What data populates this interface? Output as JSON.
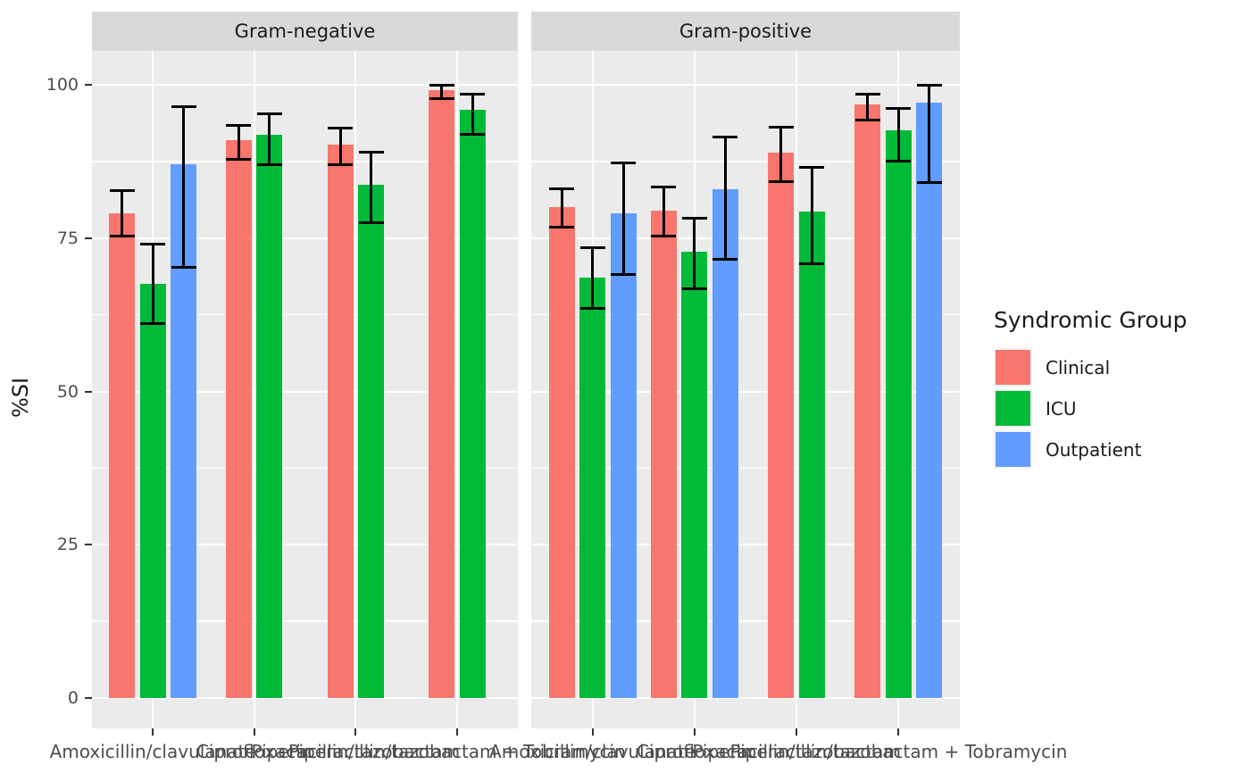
{
  "chart_data": {
    "type": "bar",
    "title": "",
    "xlabel": "",
    "ylabel": "%SI",
    "ylim": [
      0,
      100
    ],
    "y_ticks": [
      0,
      25,
      50,
      75,
      100
    ],
    "grid": true,
    "error_bars": true,
    "legend_position": "right",
    "categories": [
      "Amoxicillin/clavulanate",
      "Ciprofloxacin",
      "Piperacillin/tazobactam",
      "Piperacillin/tazobactam + Tobramycin"
    ],
    "facets": [
      {
        "name": "Gram-negative",
        "series": [
          {
            "name": "Clinical",
            "color": "#F8766D",
            "values": [
              79.1,
              91.0,
              90.2,
              99.1
            ],
            "ci_low": [
              75.4,
              87.9,
              87.0,
              97.8
            ],
            "ci_high": [
              82.8,
              93.4,
              93.0,
              100
            ]
          },
          {
            "name": "ICU",
            "color": "#00BA38",
            "values": [
              67.5,
              91.9,
              83.7,
              95.9
            ],
            "ci_low": [
              61.0,
              87.0,
              77.5,
              91.9
            ],
            "ci_high": [
              74.0,
              95.3,
              89.0,
              98.4
            ]
          },
          {
            "name": "Outpatient",
            "color": "#619CFF",
            "values": [
              87.1,
              null,
              null,
              null
            ],
            "ci_low": [
              70.3,
              null,
              null,
              null
            ],
            "ci_high": [
              96.5,
              null,
              null,
              null
            ]
          }
        ]
      },
      {
        "name": "Gram-positive",
        "series": [
          {
            "name": "Clinical",
            "color": "#F8766D",
            "values": [
              80.0,
              79.5,
              89.0,
              96.8
            ],
            "ci_low": [
              76.8,
              75.4,
              84.2,
              94.3
            ],
            "ci_high": [
              83.0,
              83.4,
              93.1,
              98.5
            ]
          },
          {
            "name": "ICU",
            "color": "#00BA38",
            "values": [
              68.6,
              72.8,
              79.4,
              92.6
            ],
            "ci_low": [
              63.5,
              66.8,
              70.8,
              87.6
            ],
            "ci_high": [
              73.4,
              78.3,
              86.6,
              96.1
            ]
          },
          {
            "name": "Outpatient",
            "color": "#619CFF",
            "values": [
              79.0,
              83.0,
              null,
              97.1
            ],
            "ci_low": [
              69.0,
              71.6,
              null,
              84.1
            ],
            "ci_high": [
              87.2,
              91.5,
              null,
              100
            ]
          }
        ]
      }
    ]
  },
  "legend": {
    "title": "Syndromic Group",
    "items": [
      {
        "label": "Clinical",
        "color": "#F8766D"
      },
      {
        "label": "ICU",
        "color": "#00BA38"
      },
      {
        "label": "Outpatient",
        "color": "#619CFF"
      }
    ]
  },
  "colors": {
    "panel_bg": "#EBEBEB",
    "strip_bg": "#D9D9D9",
    "grid": "#FFFFFF",
    "tick_text": "#4D4D4D",
    "text": "#1A1A1A",
    "error_bar": "#000000"
  }
}
